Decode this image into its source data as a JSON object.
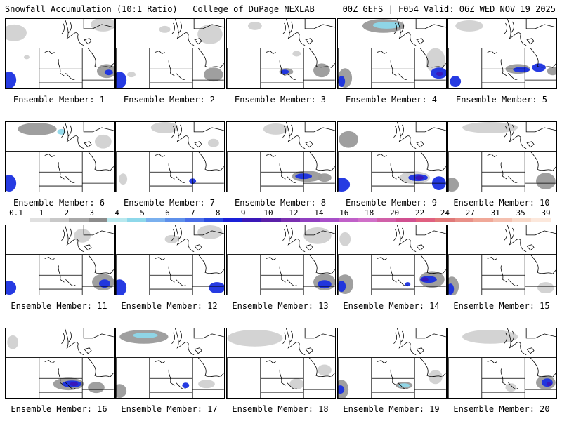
{
  "header": {
    "left_title": "Snowfall Accumulation (10:1 Ratio) | College of DuPage NEXLAB",
    "right_title": "00Z GEFS | F054 Valid: 06Z WED NOV 19 2025"
  },
  "members": [
    {
      "label": "Ensemble Member: 1"
    },
    {
      "label": "Ensemble Member: 2"
    },
    {
      "label": "Ensemble Member: 3"
    },
    {
      "label": "Ensemble Member: 4"
    },
    {
      "label": "Ensemble Member: 5"
    },
    {
      "label": "Ensemble Member: 6"
    },
    {
      "label": "Ensemble Member: 7"
    },
    {
      "label": "Ensemble Member: 8"
    },
    {
      "label": "Ensemble Member: 9"
    },
    {
      "label": "Ensemble Member: 10"
    },
    {
      "label": "Ensemble Member: 11"
    },
    {
      "label": "Ensemble Member: 12"
    },
    {
      "label": "Ensemble Member: 13"
    },
    {
      "label": "Ensemble Member: 14"
    },
    {
      "label": "Ensemble Member: 15"
    },
    {
      "label": "Ensemble Member: 16"
    },
    {
      "label": "Ensemble Member: 17"
    },
    {
      "label": "Ensemble Member: 18"
    },
    {
      "label": "Ensemble Member: 19"
    },
    {
      "label": "Ensemble Member: 20"
    }
  ],
  "colorbar": {
    "labels": [
      "0.1",
      "1",
      "2",
      "3",
      "4",
      "5",
      "6",
      "7",
      "8",
      "9",
      "10",
      "12",
      "14",
      "16",
      "18",
      "20",
      "22",
      "24",
      "27",
      "31",
      "35",
      "39"
    ],
    "colors": [
      "#ffffff",
      "#e0e0e0",
      "#c8c8c8",
      "#a8a8a8",
      "#8c8c8c",
      "#b8e8ee",
      "#8ed8ea",
      "#7ab0ee",
      "#5e90ea",
      "#4a6ee8",
      "#2848e0",
      "#1a20d8",
      "#3a18b8",
      "#5a20a8",
      "#7a30b0",
      "#9040c0",
      "#a850c8",
      "#c060c8",
      "#d070c8",
      "#d060a8",
      "#d05090",
      "#e06080",
      "#e07878",
      "#e89088",
      "#f0a898",
      "#f4c0b0",
      "#f8d8c8",
      "#fce8dc"
    ]
  },
  "layers": {
    "light_snow_color": "#c8c8c8",
    "moderate_snow_color": "#9a9a9a",
    "heavy_snow_color": "#1a30e0",
    "core_color": "#3a18b8",
    "edge_color": "#8ed8ea"
  }
}
